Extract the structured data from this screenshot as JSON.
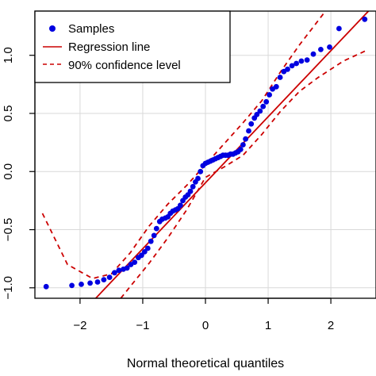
{
  "chart_data": {
    "type": "scatter",
    "title": "",
    "xlabel": "Normal theoretical quantiles",
    "ylabel": "",
    "xlim": [
      -2.72,
      2.72
    ],
    "ylim": [
      -1.09,
      1.38
    ],
    "xticks": [
      -2,
      -1,
      0,
      1,
      2
    ],
    "yticks": [
      -1.0,
      -0.5,
      0.0,
      0.5,
      1.0
    ],
    "xtick_labels": [
      "−2",
      "−1",
      "0",
      "1",
      "2"
    ],
    "ytick_labels": [
      "−1.0",
      "−0.5",
      "0.0",
      "0.5",
      "1.0"
    ],
    "grid": true,
    "legend_position": "top-left",
    "colors": {
      "samples": "#0000e0",
      "regression": "#cc0000",
      "confidence": "#cc0000",
      "grid": "#d9d9d9"
    },
    "series": [
      {
        "name": "Samples",
        "kind": "points",
        "x": [
          -2.54,
          -2.13,
          -1.98,
          -1.84,
          -1.72,
          -1.62,
          -1.53,
          -1.45,
          -1.38,
          -1.31,
          -1.25,
          -1.19,
          -1.13,
          -1.07,
          -1.02,
          -0.97,
          -0.92,
          -0.87,
          -0.82,
          -0.78,
          -0.73,
          -0.69,
          -0.64,
          -0.6,
          -0.56,
          -0.52,
          -0.48,
          -0.44,
          -0.4,
          -0.36,
          -0.32,
          -0.28,
          -0.24,
          -0.2,
          -0.16,
          -0.12,
          -0.08,
          -0.04,
          0.0,
          0.04,
          0.08,
          0.12,
          0.16,
          0.2,
          0.24,
          0.28,
          0.32,
          0.36,
          0.4,
          0.44,
          0.48,
          0.52,
          0.56,
          0.6,
          0.64,
          0.69,
          0.73,
          0.78,
          0.82,
          0.87,
          0.92,
          0.97,
          1.02,
          1.07,
          1.13,
          1.19,
          1.25,
          1.31,
          1.38,
          1.45,
          1.53,
          1.62,
          1.72,
          1.84,
          1.98,
          2.13,
          2.54
        ],
        "y": [
          -0.99,
          -0.98,
          -0.97,
          -0.96,
          -0.95,
          -0.93,
          -0.91,
          -0.87,
          -0.85,
          -0.84,
          -0.83,
          -0.8,
          -0.78,
          -0.74,
          -0.72,
          -0.69,
          -0.66,
          -0.6,
          -0.55,
          -0.49,
          -0.43,
          -0.41,
          -0.4,
          -0.39,
          -0.36,
          -0.34,
          -0.33,
          -0.32,
          -0.29,
          -0.25,
          -0.22,
          -0.2,
          -0.17,
          -0.13,
          -0.09,
          -0.06,
          0.0,
          0.05,
          0.07,
          0.08,
          0.09,
          0.1,
          0.11,
          0.12,
          0.13,
          0.14,
          0.14,
          0.14,
          0.15,
          0.15,
          0.16,
          0.17,
          0.19,
          0.23,
          0.28,
          0.35,
          0.41,
          0.46,
          0.49,
          0.52,
          0.56,
          0.6,
          0.66,
          0.71,
          0.73,
          0.81,
          0.86,
          0.88,
          0.91,
          0.93,
          0.95,
          0.96,
          1.01,
          1.05,
          1.07,
          1.23,
          1.31
        ]
      },
      {
        "name": "Regression line",
        "kind": "line",
        "style": "solid",
        "x": [
          -1.75,
          2.6
        ],
        "y": [
          -1.09,
          1.38
        ]
      },
      {
        "name": "90% confidence level",
        "kind": "line",
        "style": "dashed",
        "x": [
          -2.6,
          -2.2,
          -1.8,
          -1.5,
          -1.2,
          -0.9,
          -0.6,
          -0.3,
          0.0,
          0.3,
          0.6,
          0.9,
          1.2,
          1.5,
          1.8,
          2.0
        ],
        "y": [
          -0.36,
          -0.8,
          -0.92,
          -0.88,
          -0.7,
          -0.47,
          -0.28,
          -0.12,
          0.06,
          0.24,
          0.42,
          0.61,
          0.86,
          1.09,
          1.3,
          1.44
        ]
      },
      {
        "name": "90% confidence level",
        "kind": "line",
        "style": "dashed",
        "x": [
          -1.35,
          -1.2,
          -0.9,
          -0.6,
          -0.3,
          0.0,
          0.3,
          0.6,
          0.9,
          1.2,
          1.5,
          1.8,
          2.2,
          2.6
        ],
        "y": [
          -1.09,
          -0.99,
          -0.79,
          -0.57,
          -0.33,
          -0.05,
          0.04,
          0.14,
          0.32,
          0.52,
          0.69,
          0.81,
          0.95,
          1.05
        ]
      }
    ]
  }
}
